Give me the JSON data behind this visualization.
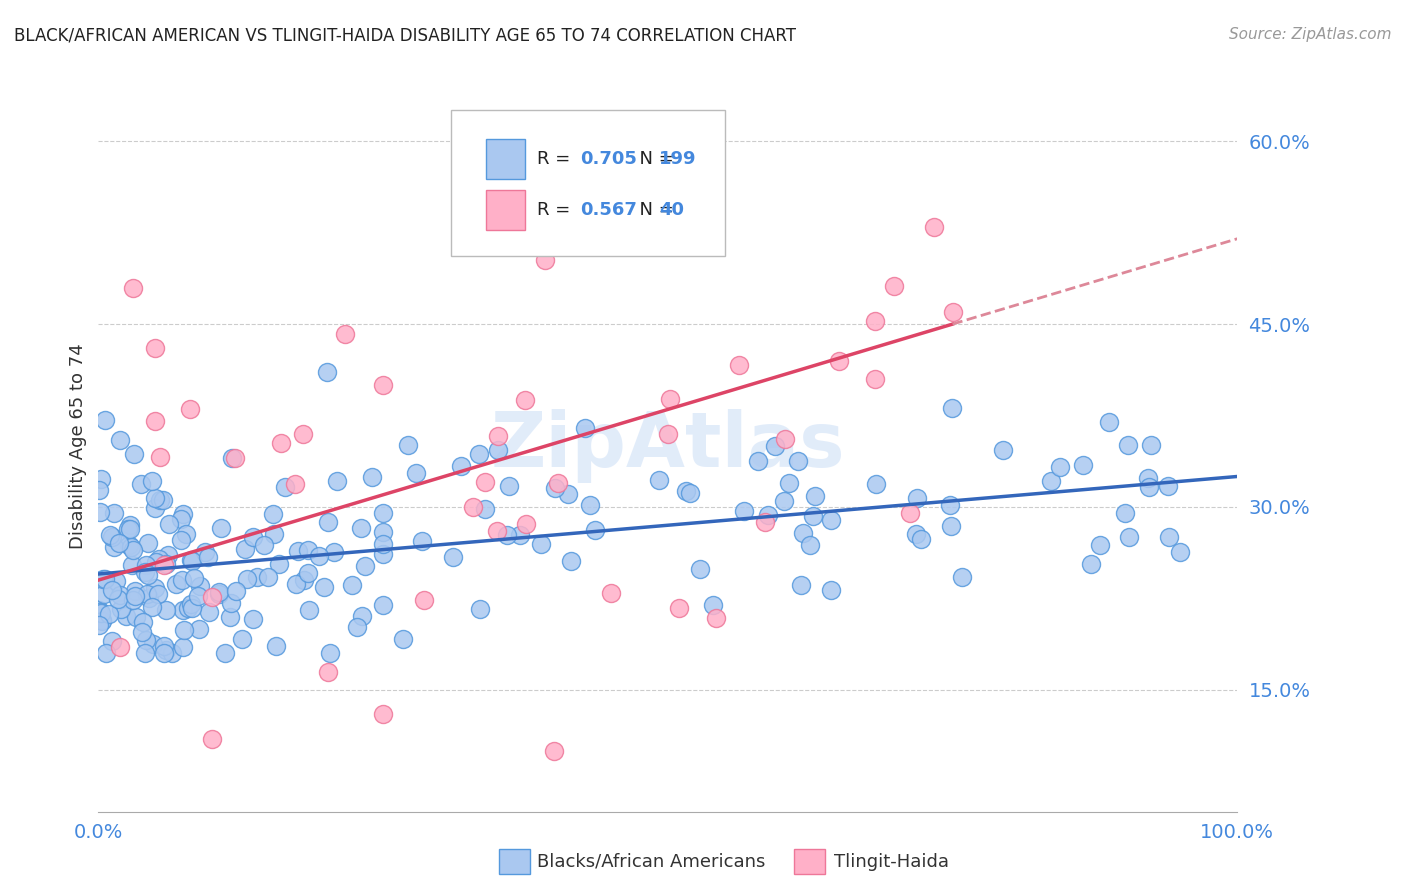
{
  "title": "BLACK/AFRICAN AMERICAN VS TLINGIT-HAIDA DISABILITY AGE 65 TO 74 CORRELATION CHART",
  "source": "Source: ZipAtlas.com",
  "ylabel": "Disability Age 65 to 74",
  "blue_R": 0.705,
  "blue_N": 199,
  "pink_R": 0.567,
  "pink_N": 40,
  "blue_color": "#aac8f0",
  "blue_edge": "#5599dd",
  "pink_color": "#ffb0c8",
  "pink_edge": "#ee7799",
  "blue_line_color": "#3366bb",
  "pink_line_color": "#dd4466",
  "pink_dash_color": "#dd8899",
  "xlim": [
    0,
    100
  ],
  "ylim": [
    5,
    65
  ],
  "yticks": [
    15,
    30,
    45,
    60
  ],
  "xtick_labels": [
    "0.0%",
    "100.0%"
  ],
  "ytick_labels": [
    "15.0%",
    "30.0%",
    "45.0%",
    "60.0%"
  ],
  "legend_label_blue": "Blacks/African Americans",
  "legend_label_pink": "Tlingit-Haida",
  "watermark": "ZipAtlas",
  "title_color": "#222222",
  "source_color": "#999999",
  "axis_color": "#4488dd",
  "grid_color": "#cccccc",
  "blue_intercept": 24.5,
  "blue_slope": 0.08,
  "pink_intercept": 24.0,
  "pink_slope": 0.28,
  "pink_data_max_x": 75,
  "marker_size": 13
}
